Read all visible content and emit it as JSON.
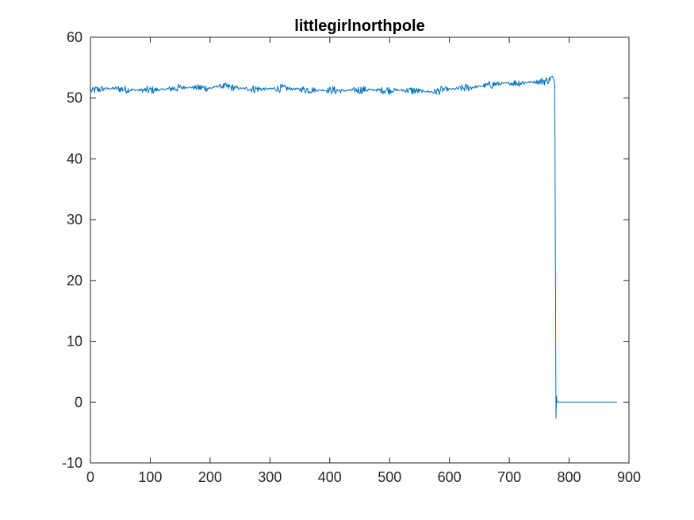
{
  "chart_data": {
    "type": "line",
    "title": "littlegirlnorthpole",
    "xlabel": "",
    "ylabel": "",
    "xlim": [
      0,
      900
    ],
    "ylim": [
      -10,
      60
    ],
    "xticks": [
      0,
      100,
      200,
      300,
      400,
      500,
      600,
      700,
      800,
      900
    ],
    "yticks": [
      -10,
      0,
      10,
      20,
      30,
      40,
      50,
      60
    ],
    "grid": false,
    "box": true,
    "series": [
      {
        "color": "#0072BD",
        "x_start": 1,
        "x_end": 880,
        "description_points": [
          [
            1,
            51.2
          ],
          [
            20,
            51.5
          ],
          [
            40,
            51.6
          ],
          [
            60,
            51.4
          ],
          [
            80,
            51.3
          ],
          [
            100,
            51.3
          ],
          [
            120,
            51.4
          ],
          [
            140,
            51.6
          ],
          [
            160,
            51.8
          ],
          [
            180,
            51.7
          ],
          [
            200,
            51.6
          ],
          [
            215,
            52.0
          ],
          [
            230,
            51.8
          ],
          [
            250,
            51.6
          ],
          [
            270,
            51.5
          ],
          [
            300,
            51.5
          ],
          [
            320,
            51.6
          ],
          [
            340,
            51.5
          ],
          [
            360,
            51.4
          ],
          [
            380,
            51.3
          ],
          [
            400,
            51.3
          ],
          [
            420,
            51.2
          ],
          [
            440,
            51.3
          ],
          [
            460,
            51.4
          ],
          [
            480,
            51.3
          ],
          [
            500,
            51.3
          ],
          [
            520,
            51.3
          ],
          [
            540,
            51.2
          ],
          [
            560,
            51.1
          ],
          [
            575,
            51.0
          ],
          [
            590,
            51.4
          ],
          [
            610,
            51.5
          ],
          [
            630,
            51.7
          ],
          [
            650,
            51.9
          ],
          [
            670,
            52.2
          ],
          [
            690,
            52.4
          ],
          [
            710,
            52.5
          ],
          [
            730,
            52.6
          ],
          [
            750,
            52.7
          ],
          [
            765,
            52.9
          ],
          [
            772,
            53.5
          ],
          [
            776,
            52.5
          ],
          [
            778,
            -2.7
          ],
          [
            779,
            1.0
          ],
          [
            780,
            0.0
          ],
          [
            800,
            0.0
          ],
          [
            840,
            0.0
          ],
          [
            880,
            0.0
          ]
        ],
        "noise_amplitude": 0.7,
        "noise_range": [
          1,
          776
        ]
      }
    ]
  }
}
